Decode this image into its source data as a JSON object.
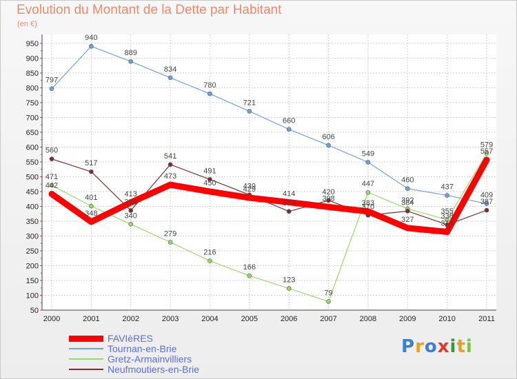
{
  "chart_data": {
    "type": "line",
    "title": "Evolution du Montant de la Dette par Habitant",
    "unit_label": "(en €)",
    "x": [
      "2000",
      "2001",
      "2002",
      "2003",
      "2004",
      "2005",
      "2006",
      "2007",
      "2008",
      "2009",
      "2010",
      "2011"
    ],
    "yticks": [
      50,
      100,
      150,
      200,
      250,
      300,
      350,
      400,
      450,
      500,
      550,
      600,
      650,
      700,
      750,
      800,
      850,
      900,
      950
    ],
    "ylim": [
      50,
      980
    ],
    "grid": true,
    "legend_position": "bottom-left",
    "series": [
      {
        "name": "FAVIèRES",
        "color": "#ff0000",
        "width": 9,
        "values": [
          442,
          348,
          413,
          473,
          450,
          429,
          414,
          398,
          383,
          327,
          314,
          557
        ]
      },
      {
        "name": "Tournan-en-Brie",
        "color": "#6fa3d6",
        "width": 1.2,
        "values": [
          797,
          940,
          889,
          834,
          780,
          721,
          660,
          606,
          549,
          460,
          437,
          409
        ]
      },
      {
        "name": "Gretz-Armainvilliers",
        "color": "#99d96b",
        "width": 1.2,
        "values": [
          471,
          401,
          340,
          279,
          216,
          166,
          123,
          79,
          447,
          392,
          355,
          579
        ]
      },
      {
        "name": "Neufmoutiers-en-Brie",
        "color": "#7a2f2f",
        "width": 1.2,
        "values": [
          560,
          517,
          386,
          541,
          491,
          439,
          383,
          420,
          370,
          384,
          338,
          387
        ]
      }
    ]
  },
  "brand": {
    "letters": [
      "P",
      "r",
      "o",
      "x",
      "i",
      "t",
      "i"
    ],
    "colors": [
      "#3a7fd0",
      "#e8a020",
      "#3a7fd0",
      "#e23a2a",
      "#2f9a3e",
      "#e8a020",
      "#7bc142"
    ]
  }
}
